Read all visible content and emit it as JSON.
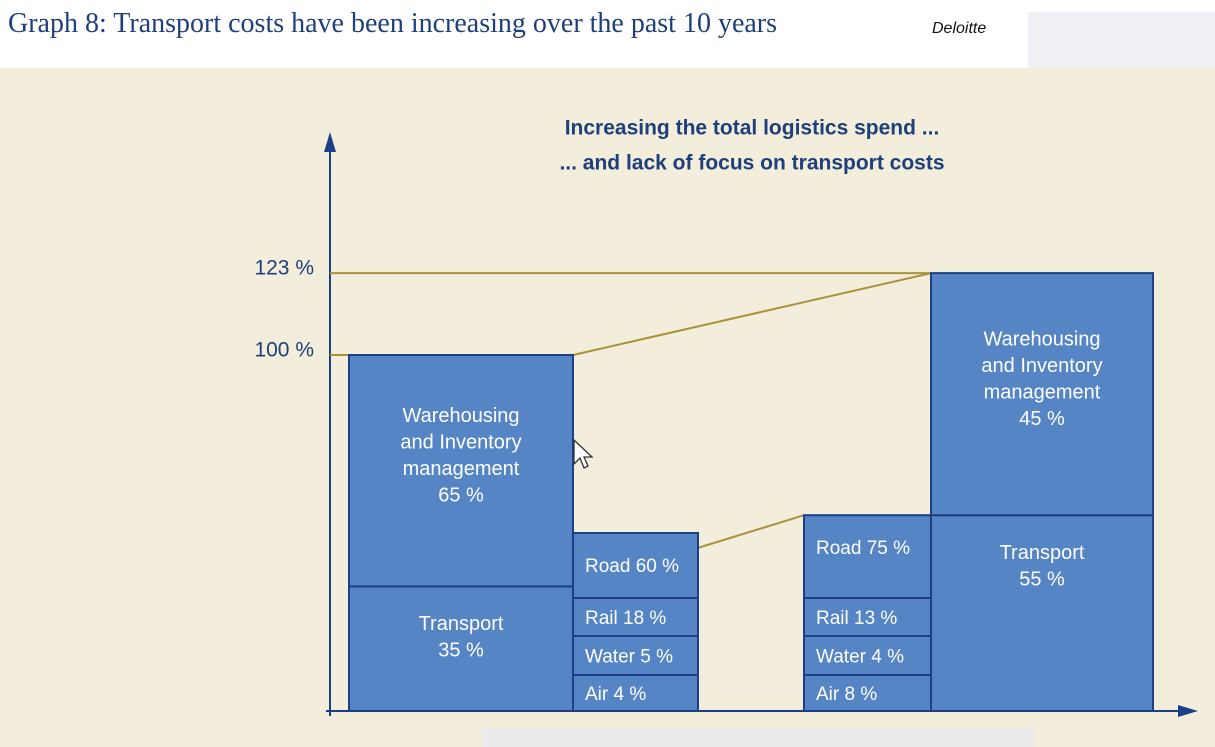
{
  "header": {
    "title": "Graph 8: Transport costs have been increasing over the past 10 years",
    "brand": "Deloitte"
  },
  "chart_data": {
    "type": "bar",
    "subtitle_lines": [
      "Increasing the total logistics spend ...",
      "... and lack of focus on transport costs"
    ],
    "y_tick_labels": [
      "123 %",
      "100 %"
    ],
    "ylim": [
      0,
      123
    ],
    "grid": false,
    "colors": {
      "box_fill": "#5585c5",
      "box_stroke": "#1c3f86",
      "connector": "#a8923c",
      "axis": "#1c3f86",
      "text_dark": "#1f3f7a"
    },
    "stacked_columns": [
      {
        "total": 100,
        "segments": [
          {
            "name": "Transport",
            "value": 35,
            "label": [
              "Transport",
              "35 %"
            ]
          },
          {
            "name": "Warehousing and Inventory management",
            "value": 65,
            "label": [
              "Warehousing",
              "and Inventory",
              "management",
              "65 %"
            ]
          }
        ]
      },
      {
        "total": 123,
        "segments": [
          {
            "name": "Transport",
            "value": 55,
            "label": [
              "Transport",
              "55 %"
            ]
          },
          {
            "name": "Warehousing and Inventory management",
            "value": 45,
            "label": [
              "Warehousing",
              "and Inventory",
              "management",
              "45 %"
            ]
          }
        ]
      }
    ],
    "transport_breakdowns": [
      {
        "segments": [
          {
            "name": "Air",
            "value": 4,
            "label": "Air 4 %"
          },
          {
            "name": "Water",
            "value": 5,
            "label": "Water 5 %"
          },
          {
            "name": "Rail",
            "value": 18,
            "label": "Rail 18 %"
          },
          {
            "name": "Road",
            "value": 60,
            "label": "Road 60 %"
          }
        ]
      },
      {
        "segments": [
          {
            "name": "Air",
            "value": 8,
            "label": "Air 8 %"
          },
          {
            "name": "Water",
            "value": 4,
            "label": "Water 4 %"
          },
          {
            "name": "Rail",
            "value": 13,
            "label": "Rail 13 %"
          },
          {
            "name": "Road",
            "value": 75,
            "label": "Road 75 %"
          }
        ]
      }
    ]
  }
}
